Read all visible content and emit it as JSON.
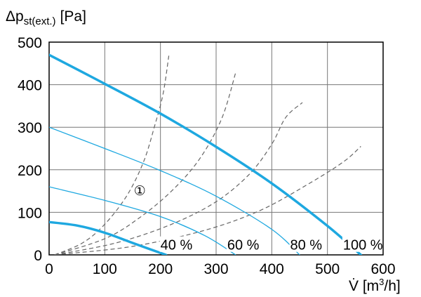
{
  "chart_data": {
    "type": "line",
    "ylabel_prefix": "Δp",
    "ylabel_sub": "st(ext.)",
    "ylabel_unit": "[Pa]",
    "xlabel_main": "V̇ [m",
    "xlabel_sup": "3",
    "xlabel_end": "/h]",
    "xlim": [
      0,
      600
    ],
    "ylim": [
      0,
      500
    ],
    "x_ticks": [
      0,
      100,
      200,
      300,
      400,
      500,
      600
    ],
    "y_ticks": [
      0,
      100,
      200,
      300,
      400,
      500
    ],
    "grid": true,
    "colors": {
      "fan_curve": "#1ea8e0",
      "system_curve": "#666666",
      "grid": "#777777"
    },
    "fan_curves": [
      {
        "style": "thick",
        "points": [
          [
            0,
            470
          ],
          [
            100,
            402
          ],
          [
            200,
            332
          ],
          [
            300,
            254
          ],
          [
            400,
            168
          ],
          [
            500,
            68
          ],
          [
            560,
            0
          ]
        ]
      },
      {
        "style": "thin",
        "points": [
          [
            0,
            300
          ],
          [
            100,
            250
          ],
          [
            200,
            198
          ],
          [
            300,
            138
          ],
          [
            400,
            60
          ],
          [
            450,
            0
          ]
        ]
      },
      {
        "style": "thin",
        "points": [
          [
            0,
            160
          ],
          [
            100,
            128
          ],
          [
            200,
            90
          ],
          [
            280,
            45
          ],
          [
            335,
            0
          ]
        ]
      },
      {
        "style": "thick",
        "points": [
          [
            0,
            77
          ],
          [
            50,
            69
          ],
          [
            100,
            52
          ],
          [
            150,
            28
          ],
          [
            210,
            0
          ]
        ]
      }
    ],
    "system_curves": [
      {
        "points": [
          [
            10,
            0
          ],
          [
            60,
            28
          ],
          [
            100,
            72
          ],
          [
            140,
            140
          ],
          [
            170,
            220
          ],
          [
            190,
            305
          ],
          [
            205,
            380
          ],
          [
            215,
            468
          ]
        ]
      },
      {
        "points": [
          [
            10,
            0
          ],
          [
            100,
            38
          ],
          [
            160,
            85
          ],
          [
            220,
            150
          ],
          [
            270,
            225
          ],
          [
            310,
            320
          ],
          [
            335,
            428
          ]
        ]
      },
      {
        "points": [
          [
            10,
            0
          ],
          [
            120,
            28
          ],
          [
            220,
            72
          ],
          [
            300,
            125
          ],
          [
            360,
            190
          ],
          [
            400,
            260
          ],
          [
            425,
            323
          ],
          [
            455,
            358
          ]
        ]
      },
      {
        "points": [
          [
            10,
            0
          ],
          [
            150,
            20
          ],
          [
            280,
            58
          ],
          [
            380,
            105
          ],
          [
            470,
            170
          ],
          [
            530,
            220
          ],
          [
            560,
            255
          ]
        ]
      }
    ],
    "percent_labels": [
      {
        "text": "40 %",
        "x": 200,
        "y": 12
      },
      {
        "text": "60 %",
        "x": 320,
        "y": 12
      },
      {
        "text": "80 %",
        "x": 433,
        "y": 12
      },
      {
        "text": "100 %",
        "x": 528,
        "y": 12
      }
    ],
    "annotation": {
      "text": "①",
      "x": 163,
      "y": 150
    }
  }
}
